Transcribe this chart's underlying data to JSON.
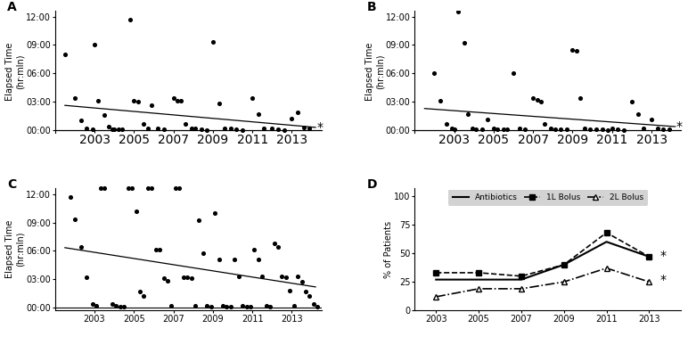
{
  "panel_A": {
    "label": "A",
    "scatter_x": [
      2001.5,
      2002.0,
      2002.3,
      2002.6,
      2002.9,
      2003.0,
      2003.2,
      2003.5,
      2003.7,
      2003.9,
      2004.0,
      2004.2,
      2004.4,
      2004.8,
      2005.0,
      2005.2,
      2005.5,
      2005.7,
      2005.9,
      2006.2,
      2006.5,
      2007.0,
      2007.2,
      2007.4,
      2007.6,
      2007.9,
      2008.1,
      2008.4,
      2008.7,
      2009.0,
      2009.3,
      2009.6,
      2009.9,
      2010.2,
      2010.5,
      2011.0,
      2011.3,
      2011.6,
      2012.0,
      2012.3,
      2012.6,
      2013.0,
      2013.3,
      2013.6,
      2013.9
    ],
    "scatter_y": [
      480,
      200,
      60,
      10,
      5,
      540,
      185,
      95,
      20,
      5,
      5,
      5,
      5,
      700,
      185,
      180,
      35,
      10,
      155,
      10,
      5,
      200,
      185,
      185,
      35,
      10,
      10,
      5,
      0,
      560,
      170,
      10,
      10,
      5,
      0,
      200,
      100,
      10,
      10,
      5,
      0,
      70,
      110,
      15,
      10
    ],
    "trend_x": [
      2001.5,
      2014.2
    ],
    "trend_y": [
      155,
      15
    ],
    "yticks": [
      0,
      180,
      360,
      540,
      720
    ],
    "ytick_labels": [
      "00:00",
      "03:00",
      "06:00",
      "09:00",
      "12:00"
    ],
    "xticks": [
      2003,
      2005,
      2007,
      2009,
      2011,
      2013
    ],
    "xlim": [
      2001,
      2014.5
    ],
    "ylim": [
      -20,
      760
    ],
    "asterisk_x": 2014.25,
    "asterisk_y": 15
  },
  "panel_B": {
    "label": "B",
    "scatter_x": [
      2002.0,
      2002.3,
      2002.6,
      2002.9,
      2003.0,
      2003.2,
      2003.5,
      2003.7,
      2003.9,
      2004.1,
      2004.4,
      2004.7,
      2005.0,
      2005.2,
      2005.5,
      2005.7,
      2006.0,
      2006.3,
      2006.6,
      2007.0,
      2007.2,
      2007.4,
      2007.6,
      2007.9,
      2008.1,
      2008.4,
      2008.7,
      2009.0,
      2009.2,
      2009.4,
      2009.6,
      2009.9,
      2010.2,
      2010.5,
      2010.8,
      2011.0,
      2011.3,
      2011.6,
      2012.0,
      2012.3,
      2012.6,
      2013.0,
      2013.3,
      2013.6,
      2013.9
    ],
    "scatter_y": [
      360,
      185,
      35,
      10,
      5,
      750,
      555,
      100,
      10,
      5,
      5,
      65,
      10,
      5,
      5,
      5,
      360,
      10,
      5,
      200,
      190,
      180,
      35,
      10,
      5,
      5,
      5,
      510,
      500,
      200,
      10,
      5,
      5,
      5,
      0,
      10,
      5,
      0,
      180,
      100,
      10,
      65,
      10,
      5,
      5
    ],
    "trend_x": [
      2001.5,
      2014.2
    ],
    "trend_y": [
      135,
      20
    ],
    "yticks": [
      0,
      180,
      360,
      540,
      720
    ],
    "ytick_labels": [
      "00:00",
      "03:00",
      "06:00",
      "09:00",
      "12:00"
    ],
    "xticks": [
      2003,
      2005,
      2007,
      2009,
      2011,
      2013
    ],
    "xlim": [
      2001,
      2014.5
    ],
    "ylim": [
      -20,
      760
    ],
    "asterisk_x": 2014.25,
    "asterisk_y": 20
  },
  "panel_C": {
    "label": "C",
    "scatter_x": [
      2001.8,
      2002.0,
      2002.3,
      2002.6,
      2002.9,
      2003.1,
      2003.3,
      2003.5,
      2003.7,
      2003.9,
      2004.1,
      2004.3,
      2004.5,
      2004.7,
      2004.9,
      2005.1,
      2005.3,
      2005.5,
      2005.7,
      2005.9,
      2006.1,
      2006.3,
      2006.5,
      2006.7,
      2006.9,
      2007.1,
      2007.3,
      2007.5,
      2007.7,
      2007.9,
      2008.1,
      2008.3,
      2008.5,
      2008.7,
      2008.9,
      2009.1,
      2009.3,
      2009.5,
      2009.7,
      2009.9,
      2010.1,
      2010.3,
      2010.5,
      2010.7,
      2010.9,
      2011.1,
      2011.3,
      2011.5,
      2011.7,
      2011.9,
      2012.1,
      2012.3,
      2012.5,
      2012.7,
      2012.9,
      2013.1,
      2013.3,
      2013.5,
      2013.7,
      2013.9,
      2014.1,
      2014.3
    ],
    "scatter_y": [
      700,
      560,
      385,
      190,
      20,
      10,
      920,
      920,
      910,
      20,
      10,
      5,
      5,
      920,
      910,
      610,
      100,
      70,
      920,
      910,
      365,
      365,
      185,
      170,
      10,
      920,
      910,
      190,
      190,
      185,
      10,
      555,
      345,
      10,
      5,
      600,
      305,
      10,
      5,
      5,
      305,
      195,
      10,
      5,
      5,
      365,
      305,
      195,
      10,
      5,
      405,
      385,
      200,
      190,
      105,
      10,
      195,
      165,
      100,
      70,
      20,
      5
    ],
    "above_clip_x": [
      2003.3,
      2003.5,
      2004.7,
      2004.9,
      2005.7,
      2005.9,
      2007.1,
      2007.3
    ],
    "trend_x": [
      2001.5,
      2014.2
    ],
    "trend_y": [
      380,
      130
    ],
    "yticks": [
      0,
      180,
      360,
      540,
      720
    ],
    "ytick_labels": [
      "00:00",
      "03:00",
      "06:00",
      "09:00",
      "12:00"
    ],
    "xticks": [
      2003,
      2005,
      2007,
      2009,
      2011,
      2013
    ],
    "xlim": [
      2001,
      2014.5
    ],
    "ylim": [
      -20,
      760
    ]
  },
  "panel_D": {
    "label": "D",
    "years": [
      2003,
      2005,
      2007,
      2009,
      2011,
      2013
    ],
    "antibiotics": [
      27,
      27,
      27,
      40,
      60,
      47
    ],
    "bolus_1L": [
      33,
      33,
      30,
      40,
      68,
      47
    ],
    "bolus_2L": [
      12,
      19,
      19,
      25,
      37,
      25
    ],
    "ylabel": "% of Patients",
    "yticks": [
      0,
      25,
      50,
      75,
      100
    ],
    "xticks": [
      2003,
      2005,
      2007,
      2009,
      2011,
      2013
    ],
    "xlim": [
      2002,
      2014.5
    ],
    "ylim": [
      0,
      107
    ],
    "asterisk_1L_x": 2013.5,
    "asterisk_1L_y": 48,
    "asterisk_2L_x": 2013.5,
    "asterisk_2L_y": 27
  }
}
